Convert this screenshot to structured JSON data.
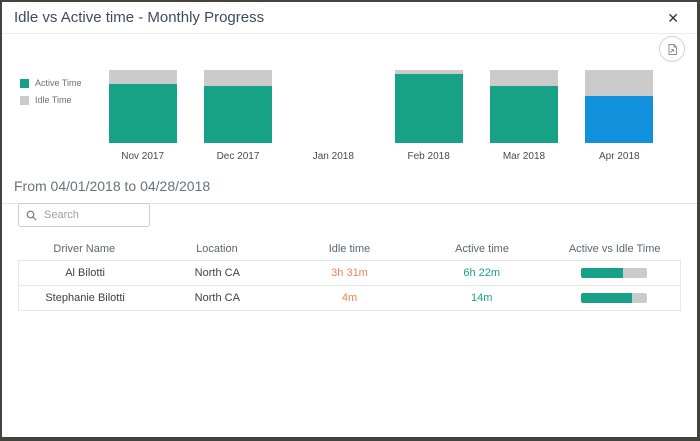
{
  "dialog": {
    "title": "Idle vs Active time - Monthly Progress",
    "close_icon": "✕"
  },
  "chart_data": {
    "type": "bar",
    "stacked": true,
    "title": "Idle vs Active time - Monthly Progress",
    "categories": [
      "Nov 2017",
      "Dec 2017",
      "Jan 2018",
      "Feb 2018",
      "Mar 2018",
      "Apr 2018"
    ],
    "series": [
      {
        "name": "Active Time",
        "values_pct": [
          81,
          78,
          null,
          95,
          78,
          64
        ]
      },
      {
        "name": "Idle Time",
        "values_pct": [
          19,
          22,
          null,
          5,
          22,
          36
        ]
      }
    ],
    "highlighted_category": "Apr 2018",
    "legend": [
      {
        "label": "Active Time"
      },
      {
        "label": "Idle Time"
      }
    ],
    "legend_position": "left",
    "ylim": [
      0,
      100
    ],
    "grid": false
  },
  "period": {
    "label": "From 04/01/2018 to 04/28/2018"
  },
  "search": {
    "placeholder": "Search"
  },
  "table": {
    "columns": [
      "Driver Name",
      "Location",
      "Idle time",
      "Active time",
      "Active vs Idle Time"
    ],
    "rows": [
      {
        "driver_name": "Al Bilotti",
        "location": "North CA",
        "idle_time": "3h 31m",
        "active_time": "6h 22m",
        "active_pct": 64
      },
      {
        "driver_name": "Stephanie Bilotti",
        "location": "North CA",
        "idle_time": "4m",
        "active_time": "14m",
        "active_pct": 78
      }
    ]
  },
  "colors": {
    "active": "#17a288",
    "idle_bar": "#cbcbcb",
    "highlight": "#1191db",
    "idle_text": "#e8825c",
    "active_text": "#17a288"
  }
}
